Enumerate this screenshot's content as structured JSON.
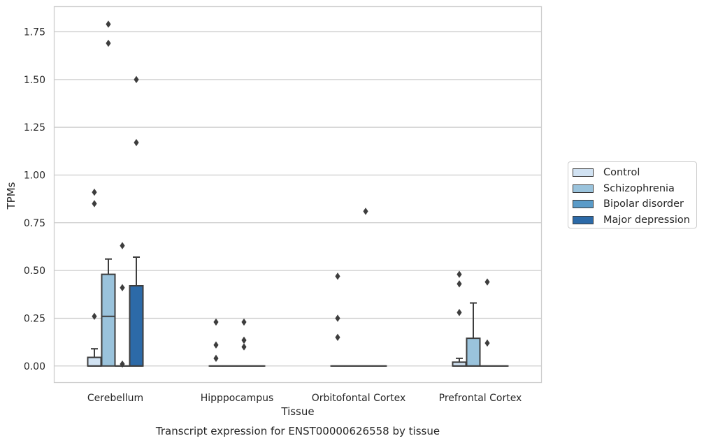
{
  "chart_data": {
    "type": "box",
    "title": "Transcript expression for ENST00000626558 by tissue",
    "xlabel": "Tissue",
    "ylabel": "TPMs",
    "ylim": [
      -0.085,
      1.88
    ],
    "yticks": [
      "0.00",
      "0.25",
      "0.50",
      "0.75",
      "1.00",
      "1.25",
      "1.50",
      "1.75"
    ],
    "ytick_values": [
      0,
      0.25,
      0.5,
      0.75,
      1.0,
      1.25,
      1.5,
      1.75
    ],
    "grid": "horizontal",
    "legend_position": "right",
    "categories": [
      "Cerebellum",
      "Hipppocampus",
      "Orbitofontal Cortex",
      "Prefrontal Cortex"
    ],
    "series": [
      {
        "name": "Control",
        "color": "#d1e2f2",
        "boxes": [
          {
            "q1": 0,
            "median": 0,
            "q3": 0.045,
            "whisker_low": 0,
            "whisker_high": 0.09,
            "outliers": [
              0.26,
              0.85,
              0.91
            ]
          },
          {
            "q1": 0,
            "median": 0,
            "q3": 0,
            "whisker_low": 0,
            "whisker_high": 0,
            "outliers": [
              0.04,
              0.11,
              0.23
            ]
          },
          {
            "q1": 0,
            "median": 0,
            "q3": 0,
            "whisker_low": 0,
            "whisker_high": 0,
            "outliers": [
              0.15,
              0.25,
              0.47
            ]
          },
          {
            "q1": 0,
            "median": 0,
            "q3": 0.02,
            "whisker_low": 0,
            "whisker_high": 0.04,
            "outliers": [
              0.28,
              0.43,
              0.48
            ]
          }
        ]
      },
      {
        "name": "Schizophrenia",
        "color": "#9ac3dc",
        "boxes": [
          {
            "q1": 0,
            "median": 0.26,
            "q3": 0.48,
            "whisker_low": 0,
            "whisker_high": 0.56,
            "outliers": [
              1.69,
              1.79
            ]
          },
          {
            "q1": 0,
            "median": 0,
            "q3": 0,
            "whisker_low": 0,
            "whisker_high": 0,
            "outliers": []
          },
          {
            "q1": 0,
            "median": 0,
            "q3": 0,
            "whisker_low": 0,
            "whisker_high": 0,
            "outliers": []
          },
          {
            "q1": 0,
            "median": 0,
            "q3": 0.145,
            "whisker_low": 0,
            "whisker_high": 0.33,
            "outliers": []
          }
        ]
      },
      {
        "name": "Bipolar disorder",
        "color": "#5a9bc8",
        "boxes": [
          {
            "q1": 0,
            "median": 0,
            "q3": 0,
            "whisker_low": 0,
            "whisker_high": 0,
            "outliers": [
              0.01,
              0.41,
              0.63
            ]
          },
          {
            "q1": 0,
            "median": 0,
            "q3": 0,
            "whisker_low": 0,
            "whisker_high": 0,
            "outliers": [
              0.1,
              0.135,
              0.23
            ]
          },
          {
            "q1": 0,
            "median": 0,
            "q3": 0,
            "whisker_low": 0,
            "whisker_high": 0,
            "outliers": [
              0.81
            ]
          },
          {
            "q1": 0,
            "median": 0,
            "q3": 0,
            "whisker_low": 0,
            "whisker_high": 0,
            "outliers": [
              0.12,
              0.44
            ]
          }
        ]
      },
      {
        "name": "Major depression",
        "color": "#2c6aa8",
        "boxes": [
          {
            "q1": 0,
            "median": 0,
            "q3": 0.42,
            "whisker_low": 0,
            "whisker_high": 0.57,
            "outliers": [
              1.17,
              1.5
            ]
          },
          {
            "q1": 0,
            "median": 0,
            "q3": 0,
            "whisker_low": 0,
            "whisker_high": 0,
            "outliers": []
          },
          {
            "q1": 0,
            "median": 0,
            "q3": 0,
            "whisker_low": 0,
            "whisker_high": 0,
            "outliers": []
          },
          {
            "q1": 0,
            "median": 0,
            "q3": 0,
            "whisker_low": 0,
            "whisker_high": 0,
            "outliers": []
          }
        ]
      }
    ]
  }
}
